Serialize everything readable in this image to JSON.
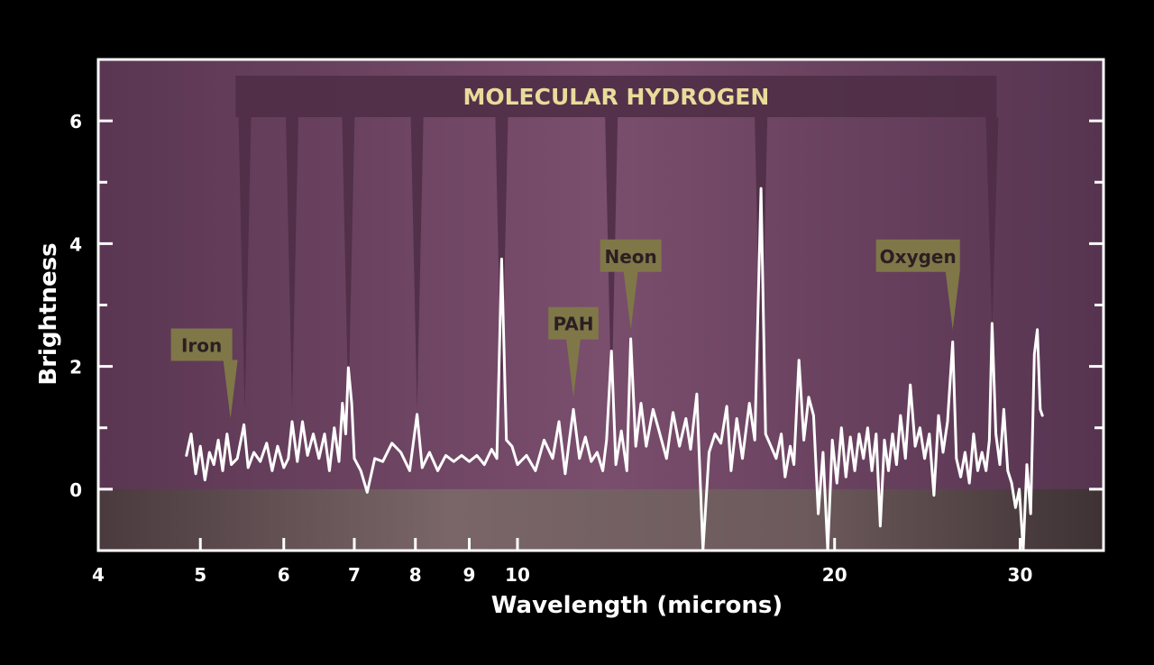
{
  "chart_data": {
    "type": "line",
    "title": "",
    "xlabel": "Wavelength (microns)",
    "ylabel": "Brightness",
    "x_scale": "log",
    "xlim": [
      4,
      36
    ],
    "ylim": [
      -1,
      7
    ],
    "x_ticks": [
      4,
      5,
      6,
      7,
      8,
      9,
      10,
      20,
      30
    ],
    "y_ticks": [
      0,
      2,
      4,
      6
    ],
    "grid": false,
    "legend": "none",
    "colors": {
      "background": "#000000",
      "plot_top": "#5e3a55",
      "plot_mid": "#764c69",
      "below_zero": "#6b5658",
      "band": "#4e2d45",
      "frame": "#ffffff",
      "line": "#ffffff",
      "callout": "#7f7748",
      "band_title": "#e8dc9a"
    },
    "band": {
      "label": "MOLECULAR HYDROGEN",
      "x_range": [
        5.4,
        28.5
      ],
      "lines": [
        5.51,
        6.11,
        6.91,
        8.03,
        9.66,
        12.28,
        17.03,
        28.22
      ]
    },
    "annotations": [
      {
        "label": "Iron",
        "x": 5.34,
        "y": 1.15
      },
      {
        "label": "PAH",
        "x": 11.3,
        "y": 1.5
      },
      {
        "label": "Neon",
        "x": 12.81,
        "y": 2.6
      },
      {
        "label": "Oxygen",
        "x": 25.89,
        "y": 2.6
      }
    ],
    "series": [
      {
        "values": [
          [
            4.85,
            0.55
          ],
          [
            4.9,
            0.9
          ],
          [
            4.95,
            0.25
          ],
          [
            5.0,
            0.7
          ],
          [
            5.05,
            0.15
          ],
          [
            5.1,
            0.6
          ],
          [
            5.15,
            0.4
          ],
          [
            5.2,
            0.8
          ],
          [
            5.25,
            0.3
          ],
          [
            5.3,
            0.9
          ],
          [
            5.35,
            0.4
          ],
          [
            5.42,
            0.5
          ],
          [
            5.5,
            1.05
          ],
          [
            5.55,
            0.35
          ],
          [
            5.62,
            0.6
          ],
          [
            5.7,
            0.45
          ],
          [
            5.78,
            0.75
          ],
          [
            5.85,
            0.3
          ],
          [
            5.92,
            0.7
          ],
          [
            6.0,
            0.35
          ],
          [
            6.06,
            0.5
          ],
          [
            6.11,
            1.1
          ],
          [
            6.18,
            0.45
          ],
          [
            6.25,
            1.1
          ],
          [
            6.32,
            0.55
          ],
          [
            6.4,
            0.9
          ],
          [
            6.48,
            0.5
          ],
          [
            6.56,
            0.9
          ],
          [
            6.63,
            0.3
          ],
          [
            6.7,
            1.0
          ],
          [
            6.77,
            0.45
          ],
          [
            6.82,
            1.4
          ],
          [
            6.87,
            0.9
          ],
          [
            6.91,
            1.98
          ],
          [
            6.96,
            1.4
          ],
          [
            7.0,
            0.5
          ],
          [
            7.1,
            0.3
          ],
          [
            7.2,
            -0.05
          ],
          [
            7.32,
            0.5
          ],
          [
            7.45,
            0.45
          ],
          [
            7.6,
            0.75
          ],
          [
            7.75,
            0.6
          ],
          [
            7.9,
            0.3
          ],
          [
            8.03,
            1.22
          ],
          [
            8.12,
            0.35
          ],
          [
            8.25,
            0.6
          ],
          [
            8.4,
            0.3
          ],
          [
            8.55,
            0.55
          ],
          [
            8.7,
            0.45
          ],
          [
            8.85,
            0.55
          ],
          [
            9.0,
            0.45
          ],
          [
            9.15,
            0.55
          ],
          [
            9.3,
            0.4
          ],
          [
            9.45,
            0.65
          ],
          [
            9.56,
            0.5
          ],
          [
            9.66,
            3.75
          ],
          [
            9.76,
            0.8
          ],
          [
            9.88,
            0.7
          ],
          [
            10.0,
            0.4
          ],
          [
            10.2,
            0.55
          ],
          [
            10.4,
            0.3
          ],
          [
            10.6,
            0.8
          ],
          [
            10.8,
            0.5
          ],
          [
            10.95,
            1.1
          ],
          [
            11.1,
            0.25
          ],
          [
            11.2,
            0.8
          ],
          [
            11.3,
            1.3
          ],
          [
            11.45,
            0.5
          ],
          [
            11.6,
            0.85
          ],
          [
            11.75,
            0.45
          ],
          [
            11.9,
            0.6
          ],
          [
            12.05,
            0.3
          ],
          [
            12.15,
            0.8
          ],
          [
            12.28,
            2.25
          ],
          [
            12.4,
            0.4
          ],
          [
            12.55,
            0.95
          ],
          [
            12.7,
            0.3
          ],
          [
            12.81,
            2.45
          ],
          [
            12.95,
            0.7
          ],
          [
            13.1,
            1.4
          ],
          [
            13.25,
            0.7
          ],
          [
            13.45,
            1.3
          ],
          [
            13.65,
            0.9
          ],
          [
            13.85,
            0.5
          ],
          [
            14.05,
            1.25
          ],
          [
            14.25,
            0.7
          ],
          [
            14.45,
            1.15
          ],
          [
            14.6,
            0.65
          ],
          [
            14.8,
            1.55
          ],
          [
            15.0,
            -1.0
          ],
          [
            15.2,
            0.6
          ],
          [
            15.4,
            0.9
          ],
          [
            15.6,
            0.75
          ],
          [
            15.8,
            1.35
          ],
          [
            15.95,
            0.3
          ],
          [
            16.15,
            1.15
          ],
          [
            16.35,
            0.5
          ],
          [
            16.6,
            1.4
          ],
          [
            16.8,
            0.8
          ],
          [
            17.03,
            4.9
          ],
          [
            17.2,
            0.9
          ],
          [
            17.4,
            0.7
          ],
          [
            17.6,
            0.5
          ],
          [
            17.8,
            0.9
          ],
          [
            17.95,
            0.2
          ],
          [
            18.15,
            0.7
          ],
          [
            18.3,
            0.4
          ],
          [
            18.5,
            2.1
          ],
          [
            18.7,
            0.8
          ],
          [
            18.9,
            1.5
          ],
          [
            19.1,
            1.2
          ],
          [
            19.3,
            -0.4
          ],
          [
            19.5,
            0.6
          ],
          [
            19.7,
            -1.0
          ],
          [
            19.9,
            0.8
          ],
          [
            20.1,
            0.1
          ],
          [
            20.3,
            1.0
          ],
          [
            20.5,
            0.2
          ],
          [
            20.7,
            0.85
          ],
          [
            20.9,
            0.3
          ],
          [
            21.1,
            0.9
          ],
          [
            21.3,
            0.5
          ],
          [
            21.5,
            1.0
          ],
          [
            21.7,
            0.3
          ],
          [
            21.9,
            0.9
          ],
          [
            22.1,
            -0.6
          ],
          [
            22.3,
            0.8
          ],
          [
            22.5,
            0.3
          ],
          [
            22.7,
            0.9
          ],
          [
            22.9,
            0.4
          ],
          [
            23.1,
            1.2
          ],
          [
            23.35,
            0.5
          ],
          [
            23.6,
            1.7
          ],
          [
            23.85,
            0.7
          ],
          [
            24.1,
            1.0
          ],
          [
            24.35,
            0.5
          ],
          [
            24.6,
            0.9
          ],
          [
            24.85,
            -0.1
          ],
          [
            25.1,
            1.2
          ],
          [
            25.35,
            0.6
          ],
          [
            25.6,
            1.1
          ],
          [
            25.89,
            2.4
          ],
          [
            26.1,
            0.5
          ],
          [
            26.35,
            0.2
          ],
          [
            26.6,
            0.6
          ],
          [
            26.85,
            0.1
          ],
          [
            27.1,
            0.9
          ],
          [
            27.35,
            0.3
          ],
          [
            27.6,
            0.6
          ],
          [
            27.85,
            0.3
          ],
          [
            28.05,
            0.8
          ],
          [
            28.22,
            2.7
          ],
          [
            28.45,
            0.9
          ],
          [
            28.7,
            0.4
          ],
          [
            28.95,
            1.3
          ],
          [
            29.2,
            0.3
          ],
          [
            29.45,
            0.1
          ],
          [
            29.7,
            -0.3
          ],
          [
            29.95,
            0.0
          ],
          [
            30.2,
            -1.0
          ],
          [
            30.45,
            0.4
          ],
          [
            30.7,
            -0.4
          ],
          [
            30.95,
            2.2
          ],
          [
            31.15,
            2.6
          ],
          [
            31.35,
            1.3
          ],
          [
            31.5,
            1.2
          ]
        ]
      }
    ]
  }
}
